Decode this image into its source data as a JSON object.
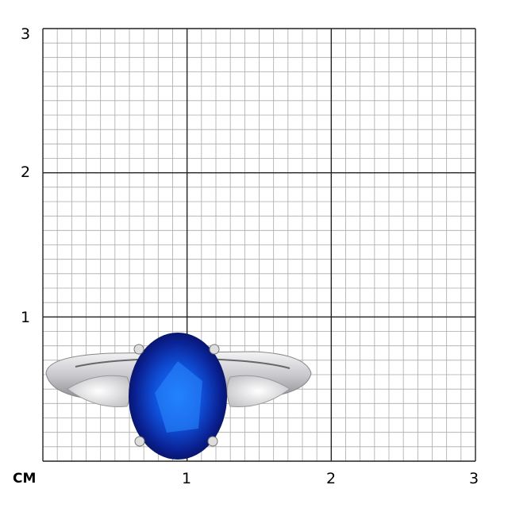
{
  "scale": {
    "unit_label": "CM",
    "y_labels": [
      "1",
      "2",
      "3"
    ],
    "x_labels": [
      "1",
      "2",
      "3"
    ],
    "major_grid_color": "#222222",
    "minor_grid_color": "#aaaaaa"
  },
  "product": {
    "subject": "ring",
    "center_stone_color": "#0a1f8f",
    "metal_color": "#d9d9dc"
  }
}
